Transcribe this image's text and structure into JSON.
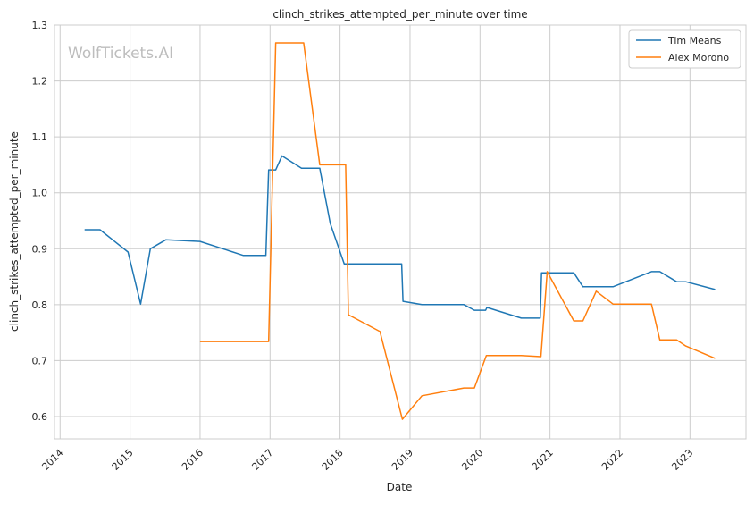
{
  "chart_data": {
    "type": "line",
    "title": "clinch_strikes_attempted_per_minute over time",
    "xlabel": "Date",
    "ylabel": "clinch_strikes_attempted_per_minute",
    "watermark": "WolfTickets.AI",
    "xlim": [
      2013.92,
      2023.8
    ],
    "ylim": [
      0.56,
      1.3
    ],
    "grid": true,
    "legend_position": "top-right",
    "x_ticks": [
      "2014",
      "2015",
      "2016",
      "2017",
      "2018",
      "2019",
      "2020",
      "2021",
      "2022",
      "2023"
    ],
    "y_ticks": [
      "0.6",
      "0.7",
      "0.8",
      "0.9",
      "1.0",
      "1.1",
      "1.2",
      "1.3"
    ],
    "series": [
      {
        "name": "Tim Means",
        "color": "#1f77b4",
        "x": [
          2014.35,
          2014.57,
          2014.97,
          2015.15,
          2015.29,
          2015.51,
          2016.0,
          2016.62,
          2016.94,
          2016.98,
          2017.08,
          2017.17,
          2017.45,
          2017.71,
          2017.86,
          2018.06,
          2018.88,
          2018.9,
          2019.17,
          2019.77,
          2019.92,
          2020.08,
          2020.1,
          2020.59,
          2020.86,
          2020.88,
          2021.34,
          2021.47,
          2021.9,
          2022.45,
          2022.57,
          2022.81,
          2022.94,
          2023.36
        ],
        "y": [
          0.934,
          0.934,
          0.894,
          0.801,
          0.9,
          0.916,
          0.913,
          0.888,
          0.888,
          1.041,
          1.041,
          1.066,
          1.044,
          1.044,
          0.945,
          0.873,
          0.873,
          0.806,
          0.8,
          0.8,
          0.79,
          0.79,
          0.795,
          0.776,
          0.776,
          0.857,
          0.857,
          0.832,
          0.832,
          0.859,
          0.859,
          0.841,
          0.841,
          0.827
        ]
      },
      {
        "name": "Alex Morono",
        "color": "#ff7f0e",
        "x": [
          2016.0,
          2016.98,
          2017.08,
          2017.48,
          2017.71,
          2018.08,
          2018.12,
          2018.57,
          2018.89,
          2019.17,
          2019.77,
          2019.92,
          2020.09,
          2020.59,
          2020.87,
          2020.96,
          2021.34,
          2021.47,
          2021.66,
          2021.9,
          2022.45,
          2022.57,
          2022.81,
          2022.94,
          2023.36
        ],
        "y": [
          0.734,
          0.734,
          1.268,
          1.268,
          1.05,
          1.05,
          0.782,
          0.752,
          0.595,
          0.637,
          0.651,
          0.651,
          0.709,
          0.709,
          0.707,
          0.859,
          0.771,
          0.771,
          0.824,
          0.801,
          0.801,
          0.737,
          0.737,
          0.726,
          0.704
        ]
      }
    ]
  }
}
